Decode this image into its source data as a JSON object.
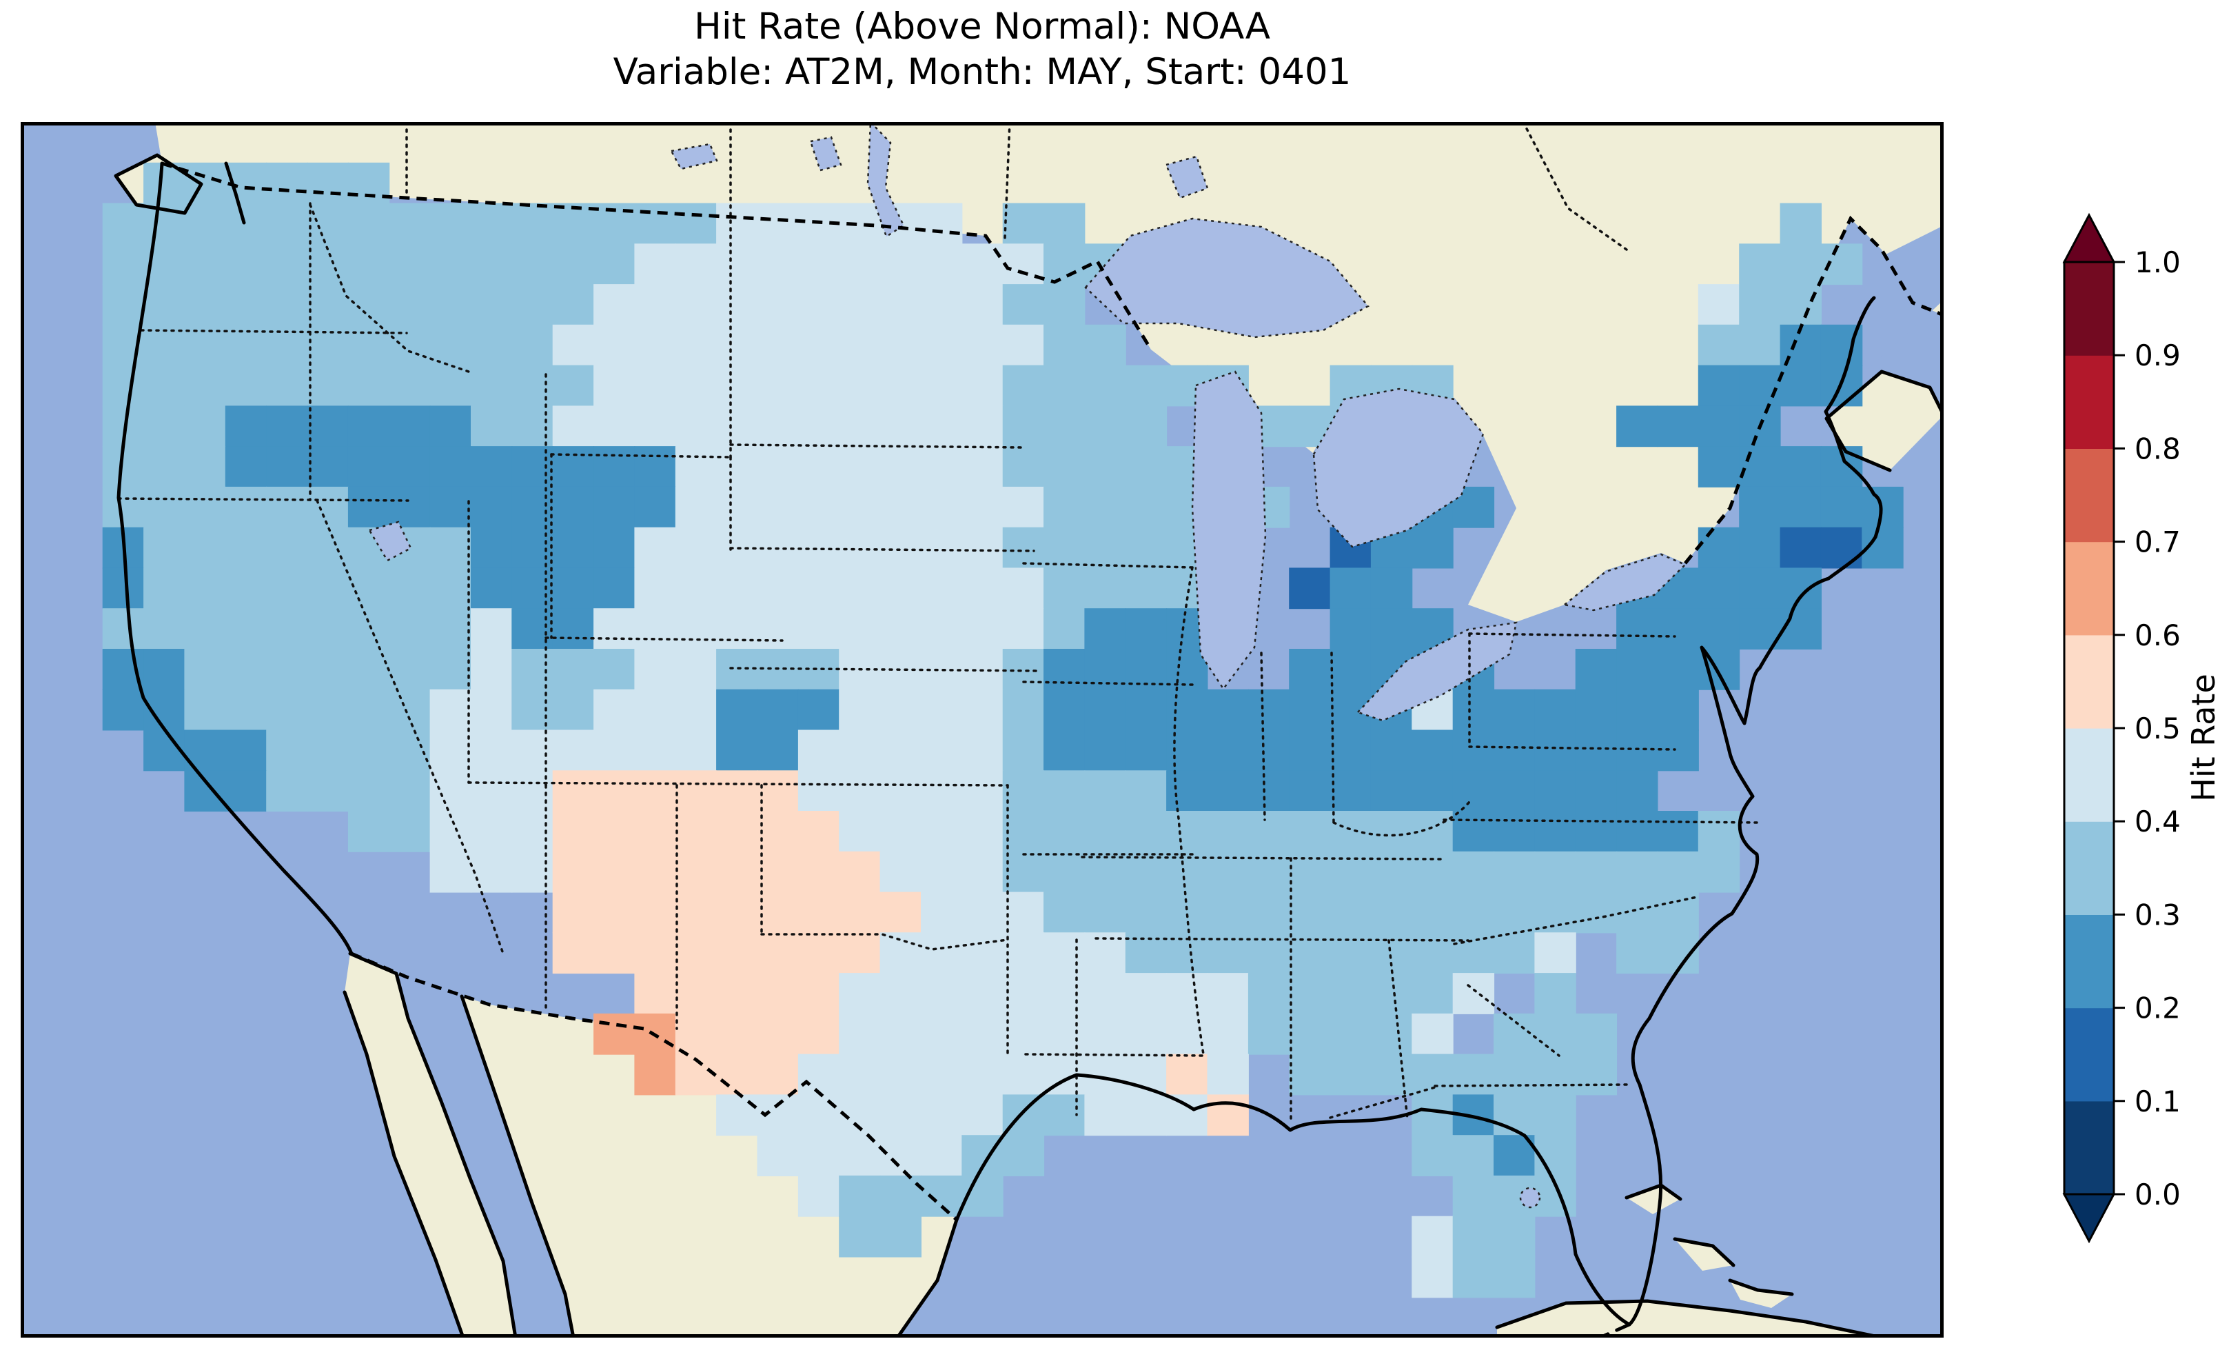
{
  "figure": {
    "title_line1": "Hit Rate (Above Normal): NOAA",
    "title_line2": "Variable: AT2M, Month: MAY, Start: 0401"
  },
  "map_colors": {
    "ocean": "#93aedd",
    "land": "#f0eed7",
    "lakes": "#a9bce5",
    "coastline": "#000000"
  },
  "chart_data": {
    "type": "heatmap",
    "title": "Hit Rate (Above Normal): NOAA",
    "subtitle": "Variable: AT2M, Month: MAY, Start: 0401",
    "projection": "conus-map",
    "colorbar": {
      "label": "Hit Rate",
      "orientation": "vertical",
      "extend": "both",
      "bin_edges": [
        0.0,
        0.1,
        0.2,
        0.3,
        0.4,
        0.5,
        0.6,
        0.7,
        0.8,
        0.9,
        1.0
      ],
      "ticks": [
        "0.0",
        "0.1",
        "0.2",
        "0.3",
        "0.4",
        "0.5",
        "0.6",
        "0.7",
        "0.8",
        "0.9",
        "1.0"
      ],
      "bin_colors": [
        "#0d3d70",
        "#2166ac",
        "#4393c3",
        "#92c5de",
        "#d1e5f0",
        "#fddbc7",
        "#f4a582",
        "#d6604d",
        "#b2182b",
        "#730a21"
      ],
      "under_color": "#053061",
      "over_color": "#67001f"
    },
    "region_values": {
      "pacific_northwest": "0.3-0.4",
      "california_coast_patches": "0.2-0.3",
      "northern_rockies_band_OR_ID_UT_WY": "0.2-0.3",
      "northern_plains_MT_ND_SD_NE_KS": "0.4-0.5",
      "southwest_AZ": "0.3-0.4 west, 0.4-0.5 east",
      "eastern_new_mexico_west_texas": "0.5-0.6",
      "big_bend_texas": "0.6-0.7",
      "east_texas_oklahoma_louisiana": "0.4-0.5",
      "midwest_ohio_valley_IA_MO_IL_IN_OH_KY": "0.2-0.3",
      "nw_lower_michigan_cell": "0.1-0.2",
      "northeast_NY_PA_New_England": "0.2-0.3",
      "cape_cod_cell": "0.1-0.2",
      "northern_maine": "0.3-0.4",
      "tennessee_valley_and_southeast": "0.3-0.4",
      "south_georgia_and_louisiana_patches": "0.4-0.5",
      "florida_peninsula": "0.3-0.4 with 0.2-0.3 cells"
    },
    "palette": {
      "1": "#2166ac",
      "2": "#4393c3",
      "3": "#92c5de",
      "4": "#d1e5f0",
      "5": "#fddbc7",
      "6": "#f4a582"
    },
    "palette_ranges": {
      "1": "0.1-0.2",
      "2": "0.2-0.3",
      "3": "0.3-0.4",
      "4": "0.4-0.5",
      "5": "0.5-0.6",
      "6": "0.6-0.7"
    },
    "grid": {
      "cols": 47,
      "rows": 30,
      "rows_data": [
        "...............................................",
        "...333333......................................",
        "..333333333333333444444.33.................3...",
        "..3333333333333444444444433...............333...",
        "..333333333333444444444433...............433...",
        "..3333333333344444444444433..............3322...",
        "..3333333333334444444444333333..333......2222...",
        "..33322222233444444444443333..333......2222...",
        "..3332222222222244444444333333..222......2222...",
        "..33333322222222444444444333333..222......2222...",
        "..2333333332222444444444333333..122......22112...",
        "..233333333222244444444443333..122.....22222...",
        "..3333333334224444444444432222..222....22222....",
        "..223333333433344333444432222..22222..2222.....",
        "..223333334433444222444432222222224222222......",
        "...22233334444444224444432222222222222222......",
        "....223333444555555444443333222222222222.......",
        "........3344455555554444333333333332222223......",
        "..........44455555555444333333333333333333......",
        ".............5555555554443333333333333333........",
        ".............5555555544444433333333334 33........",
        "...............555554444444444333334 3..........",
        "..............665555444444444433334 333.........",
        "...............655544444444454 33333333.........",
        ".................4444444334445....3233.........",
        "..................4444433.........3323.........",
        "...................43333...........333.........",
        "....................33............433..........",
        "..................................433..........",
        "..............................................."
      ]
    }
  },
  "colorbar_ui": {
    "label": "Hit Rate"
  }
}
